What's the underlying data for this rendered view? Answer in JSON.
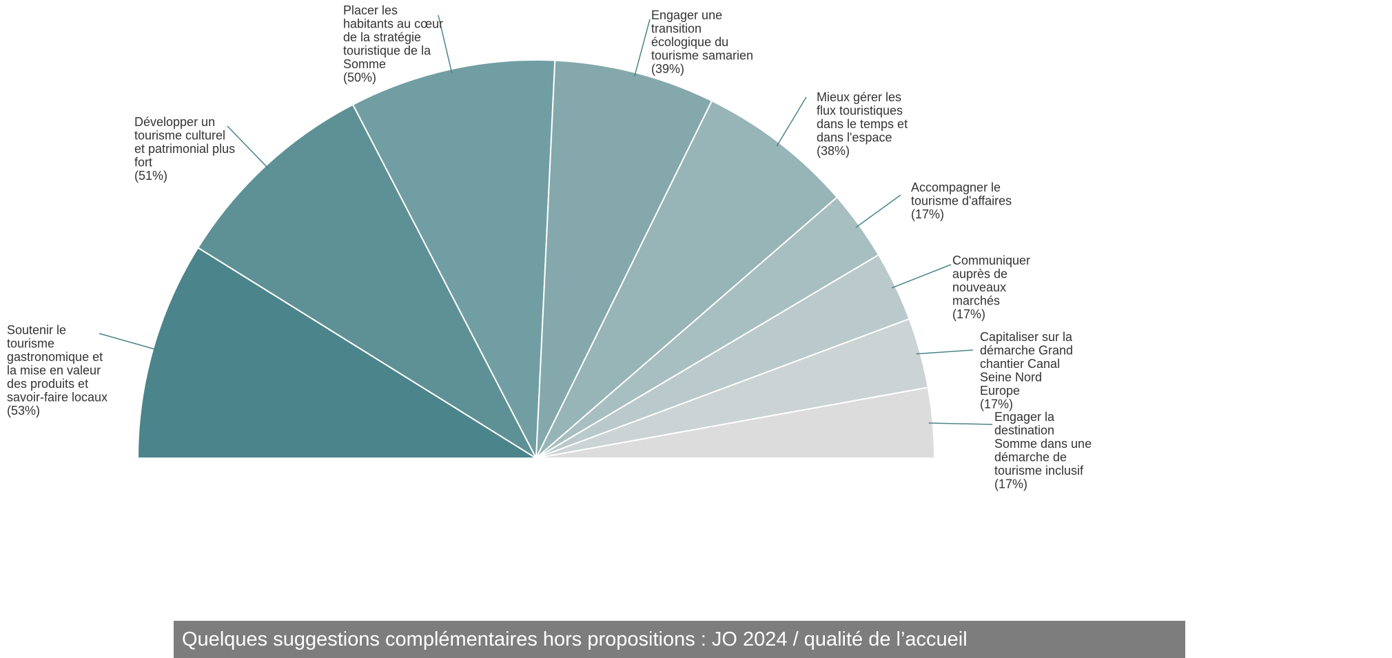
{
  "chart_data": {
    "type": "pie",
    "title": "",
    "layout": "semi-circle",
    "categories": [
      "Soutenir le tourisme gastronomique et la mise en valeur des produits et savoir-faire locaux",
      "Développer un tourisme culturel et patrimonial plus fort",
      "Placer les habitants au cœur de la stratégie touristique de la Somme",
      "Engager une transition écologique du tourisme samarien",
      "Mieux gérer les flux touristiques dans le temps et dans l'espace",
      "Accompagner le tourisme d'affaires",
      "Communiquer auprès de nouveaux marchés",
      "Capitaliser sur la démarche Grand chantier Canal Seine Nord Europe",
      "Engager la destination Somme dans une démarche de tourisme inclusif"
    ],
    "values": [
      53,
      51,
      50,
      39,
      38,
      17,
      17,
      17,
      17
    ],
    "unit": "%",
    "colors": [
      "#4b848a",
      "#5e9196",
      "#719ea3",
      "#84a8ac",
      "#97b4b7",
      "#a8bfc1",
      "#bac9cb",
      "#cbd3d4",
      "#dcdcdc"
    ],
    "label_lines": [
      [
        "Soutenir le",
        "tourisme",
        "gastronomique et",
        "la mise en valeur",
        "des produits et",
        "savoir-faire locaux",
        "(53%)"
      ],
      [
        "Développer un",
        "tourisme culturel",
        "et patrimonial plus",
        "fort",
        "(51%)"
      ],
      [
        "Placer les",
        "habitants au cœur",
        "de la stratégie",
        "touristique de la",
        "Somme",
        "(50%)"
      ],
      [
        "Engager une",
        "transition",
        "écologique du",
        "tourisme samarien",
        "(39%)"
      ],
      [
        "Mieux gérer les",
        "flux touristiques",
        "dans le temps et",
        "dans l'espace",
        "(38%)"
      ],
      [
        "Accompagner le",
        "tourisme d'affaires",
        "(17%)"
      ],
      [
        "Communiquer",
        "auprès de",
        "nouveaux",
        "marchés",
        "(17%)"
      ],
      [
        "Capitaliser sur la",
        "démarche Grand",
        "chantier Canal",
        "Seine Nord",
        "Europe",
        "(17%)"
      ],
      [
        "Engager la",
        "destination",
        "Somme dans une",
        "démarche de",
        "tourisme inclusif",
        "(17%)"
      ]
    ]
  },
  "footer": {
    "text": "Quelques suggestions complémentaires hors propositions : JO 2024 / qualité de l’accueil",
    "color": "#7d7d7d"
  }
}
